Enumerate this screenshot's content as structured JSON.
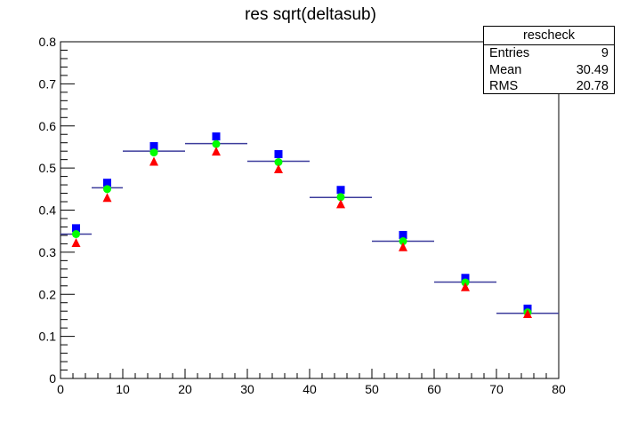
{
  "chart_data": {
    "type": "scatter",
    "title": "res sqrt(deltasub)",
    "xlim": [
      0,
      80
    ],
    "ylim": [
      0,
      0.8
    ],
    "x_ticks": [
      0,
      10,
      20,
      30,
      40,
      50,
      60,
      70,
      80
    ],
    "y_ticks": [
      0,
      0.1,
      0.2,
      0.3,
      0.4,
      0.5,
      0.6,
      0.7,
      0.8
    ],
    "histogram": {
      "color": "#3c3c9c",
      "bins": [
        {
          "x_low": 0,
          "x_high": 5,
          "value": 0.343
        },
        {
          "x_low": 5,
          "x_high": 10,
          "value": 0.453
        },
        {
          "x_low": 10,
          "x_high": 20,
          "value": 0.54
        },
        {
          "x_low": 20,
          "x_high": 30,
          "value": 0.558
        },
        {
          "x_low": 30,
          "x_high": 40,
          "value": 0.516
        },
        {
          "x_low": 40,
          "x_high": 50,
          "value": 0.43
        },
        {
          "x_low": 50,
          "x_high": 60,
          "value": 0.326
        },
        {
          "x_low": 60,
          "x_high": 70,
          "value": 0.229
        },
        {
          "x_low": 70,
          "x_high": 80,
          "value": 0.155
        }
      ]
    },
    "x": [
      2.5,
      7.5,
      15,
      25,
      35,
      45,
      55,
      65,
      75
    ],
    "series": [
      {
        "marker": "square",
        "color": "#0000ff",
        "values": [
          0.357,
          0.465,
          0.552,
          0.575,
          0.533,
          0.448,
          0.341,
          0.239,
          0.166
        ]
      },
      {
        "marker": "circle",
        "color": "#00ff00",
        "values": [
          0.343,
          0.45,
          0.537,
          0.557,
          0.514,
          0.431,
          0.326,
          0.228,
          0.157
        ]
      },
      {
        "marker": "triangle",
        "color": "#ff0000",
        "values": [
          0.322,
          0.429,
          0.515,
          0.539,
          0.497,
          0.414,
          0.312,
          0.217,
          0.153
        ]
      }
    ]
  },
  "stats_box": {
    "name": "rescheck",
    "rows": [
      {
        "label": "Entries",
        "value": "9"
      },
      {
        "label": "Mean",
        "value": "30.49"
      },
      {
        "label": "RMS",
        "value": "20.78"
      }
    ]
  }
}
